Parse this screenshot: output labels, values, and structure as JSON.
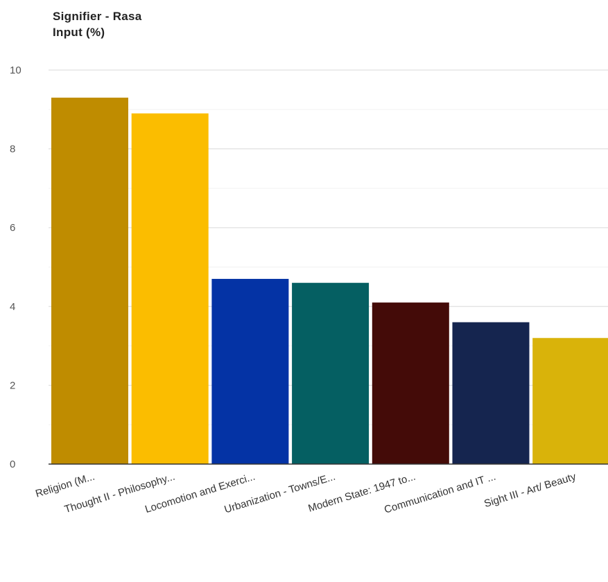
{
  "chart_data": {
    "type": "bar",
    "title": "Signifier - Rasa",
    "subtitle": "Input (%)",
    "categories": [
      "Religion (M...",
      "Thought II - Philosophy...",
      "Locomotion and Exerci...",
      "Urbanization - Towns/E...",
      "Modern State: 1947 to...",
      "Communication and IT ...",
      "Sight III - Art/ Beauty"
    ],
    "values": [
      9.3,
      8.9,
      4.7,
      4.6,
      4.1,
      3.6,
      3.2
    ],
    "colors": [
      "#bf8c00",
      "#fbbd00",
      "#0433a5",
      "#055f62",
      "#440b08",
      "#15254f",
      "#d9b30a"
    ],
    "ylim": [
      0,
      10
    ],
    "yticks": [
      0,
      2,
      4,
      6,
      8,
      10
    ],
    "grid": true,
    "xlabel": "",
    "ylabel": ""
  }
}
